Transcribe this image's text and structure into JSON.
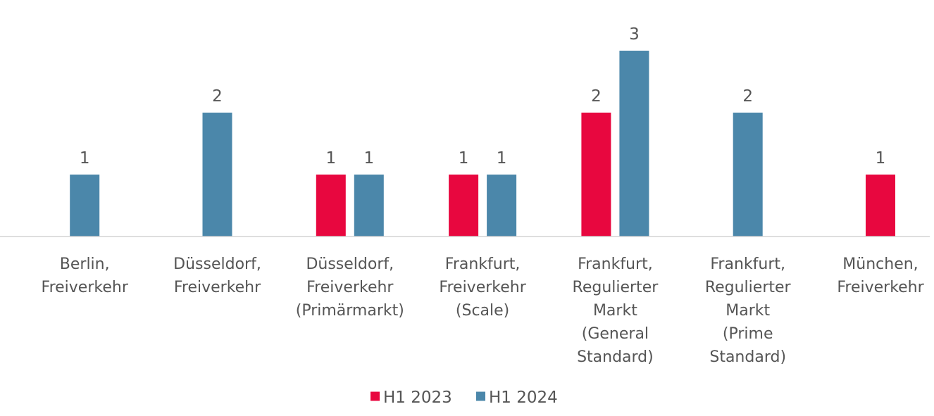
{
  "chart_data": {
    "type": "bar",
    "title": "",
    "xlabel": "",
    "ylabel": "",
    "ylim": [
      0,
      3
    ],
    "grid": false,
    "legend_position": "bottom",
    "categories": [
      [
        "Berlin,",
        "Freiverkehr"
      ],
      [
        "Düsseldorf,",
        "Freiverkehr"
      ],
      [
        "Düsseldorf,",
        "Freiverkehr",
        "(Primärmarkt)"
      ],
      [
        "Frankfurt,",
        "Freiverkehr",
        "(Scale)"
      ],
      [
        "Frankfurt,",
        "Regulierter",
        "Markt",
        "(General",
        "Standard)"
      ],
      [
        "Frankfurt,",
        "Regulierter",
        "Markt",
        "(Prime",
        "Standard)"
      ],
      [
        "München,",
        "Freiverkehr"
      ]
    ],
    "series": [
      {
        "name": "H1 2023",
        "color": "#e8073f",
        "values": [
          null,
          null,
          1,
          1,
          2,
          null,
          1
        ]
      },
      {
        "name": "H1 2024",
        "color": "#4b87aa",
        "values": [
          1,
          2,
          1,
          1,
          3,
          2,
          null
        ]
      }
    ]
  },
  "colors": {
    "axis": "#d4d4d4",
    "text": "#555555"
  }
}
